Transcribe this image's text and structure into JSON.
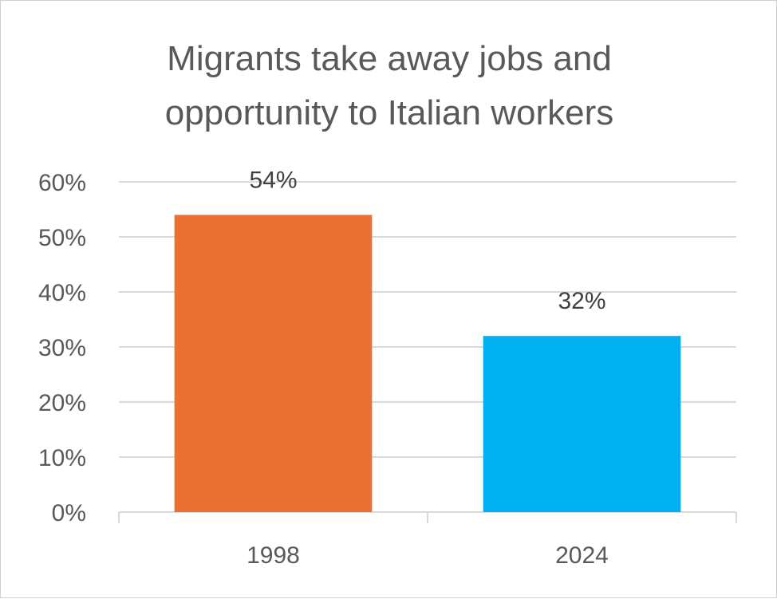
{
  "chart_data": {
    "type": "bar",
    "title_lines": [
      "Migrants take away jobs and",
      "opportunity to Italian workers"
    ],
    "categories": [
      "1998",
      "2024"
    ],
    "values": [
      54,
      32
    ],
    "data_labels": [
      "54%",
      "32%"
    ],
    "colors": [
      "#E97132",
      "#00B0F0"
    ],
    "ylim": [
      0,
      60
    ],
    "yticks": [
      0,
      10,
      20,
      30,
      40,
      50,
      60
    ],
    "ytick_labels": [
      "0%",
      "10%",
      "20%",
      "30%",
      "40%",
      "50%",
      "60%"
    ],
    "grid": true,
    "legend": "none",
    "xlabel": "",
    "ylabel": ""
  }
}
